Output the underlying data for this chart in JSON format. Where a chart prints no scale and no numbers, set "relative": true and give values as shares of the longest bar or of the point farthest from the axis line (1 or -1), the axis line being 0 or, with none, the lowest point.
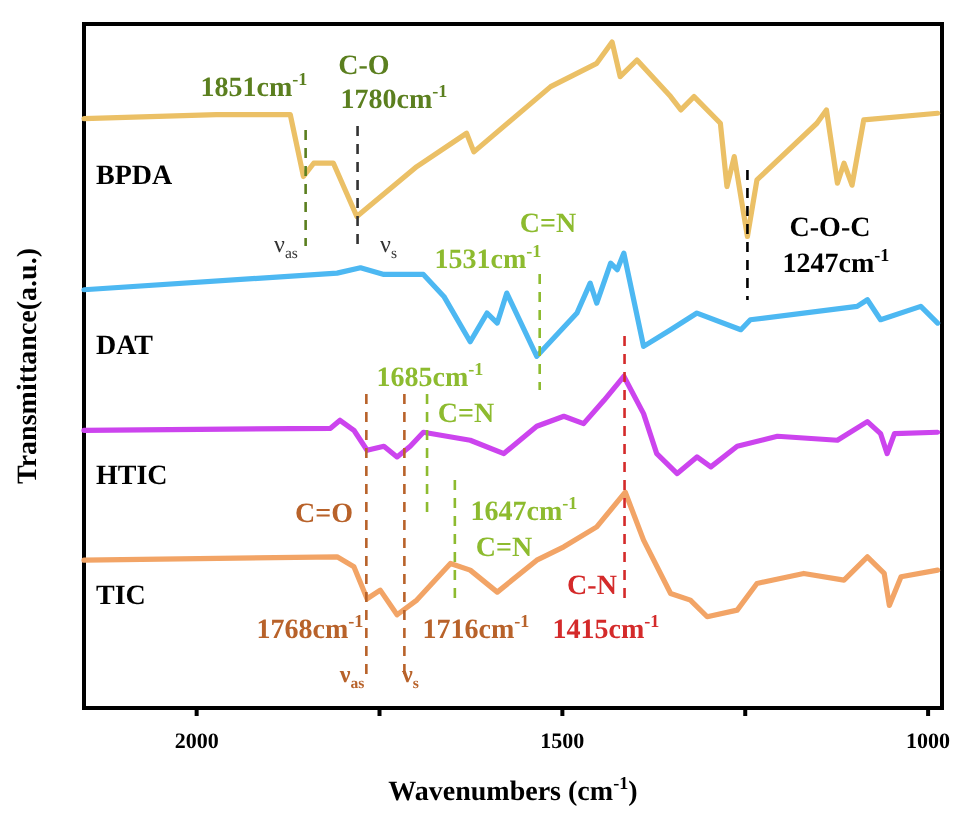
{
  "chart_data": {
    "type": "line",
    "relative": true,
    "xlabel": "Wavenumbers (cm$^{-1}$)",
    "ylabel": "Transmittance(a.u.)",
    "xlim": [
      2154,
      981
    ],
    "xticks": [
      2000,
      1500,
      1000,
      {
        "value": 1750,
        "label": null
      },
      {
        "value": 1250,
        "label": null
      }
    ],
    "tick_labels": "x",
    "legend": false,
    "series": [
      {
        "name": "BPDA",
        "color": "#ebc066",
        "x": [
          2154,
          1973,
          1872,
          1854,
          1840,
          1813,
          1781,
          1699,
          1631,
          1621,
          1516,
          1453,
          1432,
          1421,
          1398,
          1352,
          1338,
          1320,
          1284,
          1275,
          1265,
          1247,
          1234,
          1152,
          1139,
          1124,
          1115,
          1104,
          1088,
          987
        ],
        "values": [
          0.885,
          0.891,
          0.891,
          0.798,
          0.818,
          0.818,
          0.738,
          0.813,
          0.863,
          0.835,
          0.933,
          0.968,
          1.0,
          0.948,
          0.973,
          0.918,
          0.898,
          0.918,
          0.878,
          0.783,
          0.828,
          0.708,
          0.793,
          0.878,
          0.898,
          0.788,
          0.818,
          0.785,
          0.883,
          0.893
        ]
      },
      {
        "name": "DAT",
        "color": "#4db8f2",
        "x": [
          2154,
          1808,
          1776,
          1744,
          1690,
          1662,
          1626,
          1603,
          1589,
          1576,
          1535,
          1480,
          1462,
          1453,
          1434,
          1425,
          1416,
          1389,
          1352,
          1316,
          1256,
          1243,
          1097,
          1083,
          1065,
          1010,
          987
        ],
        "values": [
          0.628,
          0.653,
          0.661,
          0.651,
          0.651,
          0.618,
          0.55,
          0.593,
          0.578,
          0.623,
          0.528,
          0.593,
          0.638,
          0.608,
          0.668,
          0.658,
          0.683,
          0.543,
          0.568,
          0.593,
          0.568,
          0.583,
          0.603,
          0.613,
          0.583,
          0.603,
          0.578
        ]
      },
      {
        "name": "HTIC",
        "color": "#cc44ee",
        "x": [
          2154,
          1817,
          1804,
          1785,
          1767,
          1744,
          1726,
          1708,
          1690,
          1626,
          1580,
          1535,
          1498,
          1471,
          1443,
          1416,
          1389,
          1371,
          1343,
          1316,
          1297,
          1261,
          1206,
          1124,
          1083,
          1065,
          1056,
          1046,
          987
        ],
        "values": [
          0.417,
          0.42,
          0.432,
          0.417,
          0.387,
          0.393,
          0.377,
          0.393,
          0.414,
          0.402,
          0.382,
          0.423,
          0.438,
          0.427,
          0.462,
          0.498,
          0.442,
          0.382,
          0.352,
          0.377,
          0.362,
          0.393,
          0.408,
          0.402,
          0.43,
          0.412,
          0.382,
          0.412,
          0.414
        ]
      },
      {
        "name": "TIC",
        "color": "#f2a466",
        "x": [
          2154,
          1808,
          1785,
          1767,
          1749,
          1726,
          1699,
          1653,
          1626,
          1589,
          1535,
          1498,
          1453,
          1414,
          1389,
          1352,
          1325,
          1302,
          1261,
          1234,
          1170,
          1115,
          1083,
          1060,
          1053,
          1037,
          987
        ],
        "values": [
          0.222,
          0.227,
          0.212,
          0.164,
          0.177,
          0.14,
          0.162,
          0.217,
          0.207,
          0.174,
          0.222,
          0.242,
          0.272,
          0.324,
          0.252,
          0.172,
          0.162,
          0.137,
          0.147,
          0.187,
          0.202,
          0.192,
          0.227,
          0.202,
          0.154,
          0.197,
          0.207
        ]
      }
    ],
    "annotations": [
      {
        "text": "1851cm$^{-1}$",
        "x": 1851,
        "y": 0.8
      },
      "C-O",
      "1780cm$^{-1}$",
      "ν$_{as}$",
      {
        "text": "ν$_{s}$",
        "x": 1780,
        "y": 0.74
      },
      "C-O-C",
      {
        "text": "1247cm$^{-1}$",
        "x": 1247,
        "y": 0.71
      },
      {
        "text": "1531cm$^{-1}$",
        "x": 1531,
        "y": 0.53
      },
      "C=N",
      {
        "text": "1685cm$^{-1}$",
        "x": 1685,
        "y": 0.41
      },
      "C=N",
      {
        "text": "1647cm$^{-1}$",
        "x": 1647,
        "y": 0.22
      },
      "C=N",
      "C=O",
      {
        "text": "1768cm$^{-1}$",
        "x": 1768,
        "y": 0.16
      },
      {
        "text": "1716cm$^{-1}$",
        "x": 1716,
        "y": 0.15
      },
      "ν$_{as}$",
      "ν$_{s}$",
      {
        "text": "C-N",
        "x": 1415,
        "y": 0.32
      },
      "1415cm$^{-1}$"
    ]
  }
}
